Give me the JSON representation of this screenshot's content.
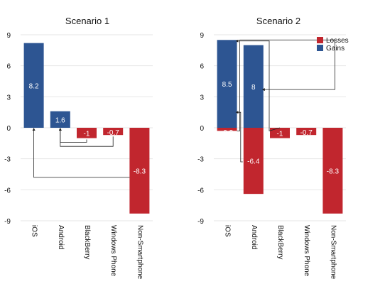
{
  "chart_data": [
    {
      "type": "bar",
      "title": "Scenario 1",
      "categories": [
        "iOS",
        "Android",
        "BlackBerry",
        "Windows Phone",
        "Non-Smartphone"
      ],
      "series": [
        {
          "values": [
            8.2,
            1.6,
            -1,
            -0.7,
            -8.3
          ]
        }
      ],
      "data_labels": [
        "8.2",
        "1.6",
        "-1",
        "-0.7",
        "-8.3"
      ],
      "ylim": [
        -9,
        9
      ],
      "yticks": [
        9,
        6,
        3,
        0,
        -3,
        -6,
        -9
      ],
      "grid": true,
      "legend": "none",
      "flows": [
        {
          "from": "Non-Smartphone",
          "to": "iOS"
        },
        {
          "from": "Windows Phone",
          "to": "Android"
        },
        {
          "from": "BlackBerry",
          "to": "Android"
        }
      ]
    },
    {
      "type": "bar",
      "title": "Scenario 2",
      "categories": [
        "iOS",
        "Android",
        "BlackBerry",
        "Windows Phone",
        "Non-Smartphone"
      ],
      "series": [
        {
          "name": "Losses",
          "values": [
            -0.3,
            -6.4,
            -1,
            -0.7,
            -8.3
          ]
        },
        {
          "name": "Gains",
          "values": [
            8.5,
            8,
            0,
            0,
            0
          ]
        }
      ],
      "data_labels": {
        "Losses": [
          "-0.3",
          "-6.4",
          "-1",
          "-0.7",
          "-8.3"
        ],
        "Gains": [
          "8.5",
          "8",
          "",
          "",
          ""
        ]
      },
      "ylim": [
        -9,
        9
      ],
      "yticks": [
        9,
        6,
        3,
        0,
        -3,
        -6,
        -9
      ],
      "grid": true,
      "legend": "top-right",
      "flows": [
        {
          "from": "Android",
          "to": "iOS"
        },
        {
          "from": "BlackBerry",
          "to": "iOS"
        },
        {
          "from": "iOS",
          "to": "Android"
        },
        {
          "from": "Windows Phone",
          "to": "Android"
        }
      ]
    }
  ],
  "colors": {
    "gains": "#2d5592",
    "losses": "#c1262e",
    "grid": "#e6e6e6",
    "axis": "#222222",
    "label": "#ffffff"
  }
}
